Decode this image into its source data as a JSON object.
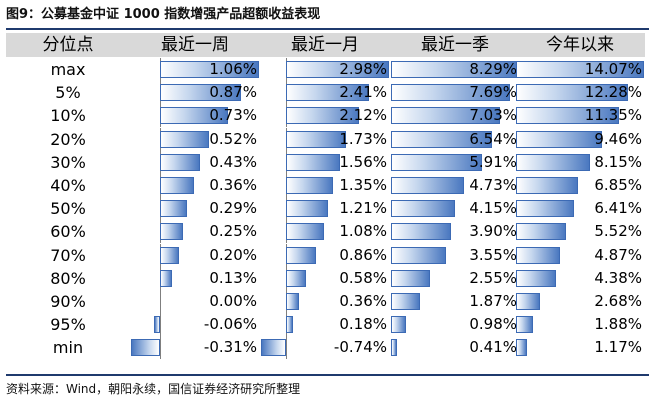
{
  "title": "图9：公募基金中证 1000 指数增强产品超额收益表现",
  "source": "资料来源：Wind，朝阳永续，国信证券经济研究所整理",
  "header": {
    "label": "分位点",
    "columns": [
      "最近一周",
      "最近一月",
      "最近一季",
      "今年以来"
    ]
  },
  "rows": [
    {
      "label": "max",
      "values": [
        "1.06%",
        "2.98%",
        "8.29%",
        "14.07%"
      ]
    },
    {
      "label": "5%",
      "values": [
        "0.87%",
        "2.41%",
        "7.69%",
        "12.28%"
      ]
    },
    {
      "label": "10%",
      "values": [
        "0.73%",
        "2.12%",
        "7.03%",
        "11.35%"
      ]
    },
    {
      "label": "20%",
      "values": [
        "0.52%",
        "1.73%",
        "6.54%",
        "9.46%"
      ]
    },
    {
      "label": "30%",
      "values": [
        "0.43%",
        "1.56%",
        "5.91%",
        "8.15%"
      ]
    },
    {
      "label": "40%",
      "values": [
        "0.36%",
        "1.35%",
        "4.73%",
        "6.85%"
      ]
    },
    {
      "label": "50%",
      "values": [
        "0.29%",
        "1.21%",
        "4.15%",
        "6.41%"
      ]
    },
    {
      "label": "60%",
      "values": [
        "0.25%",
        "1.08%",
        "3.90%",
        "5.52%"
      ]
    },
    {
      "label": "70%",
      "values": [
        "0.20%",
        "0.86%",
        "3.55%",
        "4.87%"
      ]
    },
    {
      "label": "80%",
      "values": [
        "0.13%",
        "0.58%",
        "2.55%",
        "4.38%"
      ]
    },
    {
      "label": "90%",
      "values": [
        "0.00%",
        "0.36%",
        "1.87%",
        "2.68%"
      ]
    },
    {
      "label": "95%",
      "values": [
        "-0.06%",
        "0.18%",
        "0.98%",
        "1.88%"
      ]
    },
    {
      "label": "min",
      "values": [
        "-0.31%",
        "-0.74%",
        "0.41%",
        "1.17%"
      ]
    }
  ],
  "colors": {
    "bar_dark": "#4a78c0",
    "bar_border": "#3c6ab4",
    "header_bg": "#d9d9d9",
    "rule": "#1f3a6d"
  }
}
